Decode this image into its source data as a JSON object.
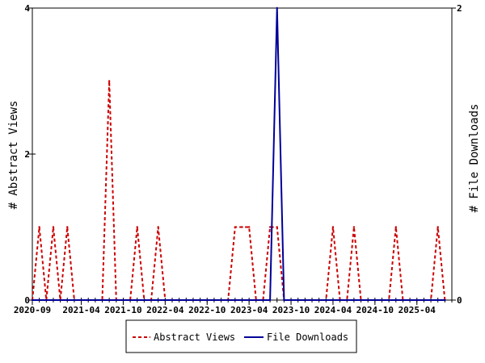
{
  "chart_data": {
    "type": "line",
    "title": "",
    "x_tick_labels": [
      "2020-09",
      "2021-04",
      "2021-10",
      "2022-04",
      "2022-10",
      "2023-04",
      "2023-10",
      "2024-04",
      "2024-10",
      "2025-04"
    ],
    "x_range_months": [
      "2020-09",
      "2025-09"
    ],
    "y_left_label": "# Abstract Views",
    "y_right_label": "# File Downloads",
    "y_left_range": [
      0,
      4
    ],
    "y_right_range": [
      0,
      2
    ],
    "y_left_ticks": [
      "0",
      "2",
      "4"
    ],
    "y_right_ticks": [
      "0",
      "2"
    ],
    "grid": false,
    "legend_position": "bottom",
    "series": [
      {
        "name": "Abstract Views",
        "axis": "left",
        "color": "#cc0000",
        "style": "dashed",
        "points": [
          [
            "2020-09",
            0
          ],
          [
            "2020-10",
            1
          ],
          [
            "2020-11",
            0
          ],
          [
            "2020-12",
            1
          ],
          [
            "2021-01",
            0
          ],
          [
            "2021-02",
            1
          ],
          [
            "2021-03",
            0
          ],
          [
            "2021-04",
            0
          ],
          [
            "2021-05",
            0
          ],
          [
            "2021-06",
            0
          ],
          [
            "2021-07",
            0
          ],
          [
            "2021-08",
            3
          ],
          [
            "2021-09",
            0
          ],
          [
            "2021-10",
            0
          ],
          [
            "2021-11",
            0
          ],
          [
            "2021-12",
            1
          ],
          [
            "2022-01",
            0
          ],
          [
            "2022-02",
            0
          ],
          [
            "2022-03",
            1
          ],
          [
            "2022-04",
            0
          ],
          [
            "2022-05",
            0
          ],
          [
            "2022-06",
            0
          ],
          [
            "2022-07",
            0
          ],
          [
            "2022-08",
            0
          ],
          [
            "2022-09",
            0
          ],
          [
            "2022-10",
            0
          ],
          [
            "2022-11",
            0
          ],
          [
            "2022-12",
            0
          ],
          [
            "2023-01",
            0
          ],
          [
            "2023-02",
            1
          ],
          [
            "2023-03",
            1
          ],
          [
            "2023-04",
            1
          ],
          [
            "2023-05",
            0
          ],
          [
            "2023-06",
            0
          ],
          [
            "2023-07",
            1
          ],
          [
            "2023-08",
            1
          ],
          [
            "2023-09",
            0
          ],
          [
            "2023-10",
            0
          ],
          [
            "2023-11",
            0
          ],
          [
            "2023-12",
            0
          ],
          [
            "2024-01",
            0
          ],
          [
            "2024-02",
            0
          ],
          [
            "2024-03",
            0
          ],
          [
            "2024-04",
            1
          ],
          [
            "2024-05",
            0
          ],
          [
            "2024-06",
            0
          ],
          [
            "2024-07",
            1
          ],
          [
            "2024-08",
            0
          ],
          [
            "2024-09",
            0
          ],
          [
            "2024-10",
            0
          ],
          [
            "2024-11",
            0
          ],
          [
            "2024-12",
            0
          ],
          [
            "2025-01",
            1
          ],
          [
            "2025-02",
            0
          ],
          [
            "2025-03",
            0
          ],
          [
            "2025-04",
            0
          ],
          [
            "2025-05",
            0
          ],
          [
            "2025-06",
            0
          ],
          [
            "2025-07",
            1
          ],
          [
            "2025-08",
            0
          ]
        ]
      },
      {
        "name": "File Downloads",
        "axis": "right",
        "color": "#000099",
        "style": "solid",
        "points": [
          [
            "2020-09",
            0
          ],
          [
            "2023-06",
            0
          ],
          [
            "2023-07",
            0
          ],
          [
            "2023-08",
            2
          ],
          [
            "2023-09",
            0
          ],
          [
            "2025-08",
            0
          ]
        ]
      }
    ]
  }
}
